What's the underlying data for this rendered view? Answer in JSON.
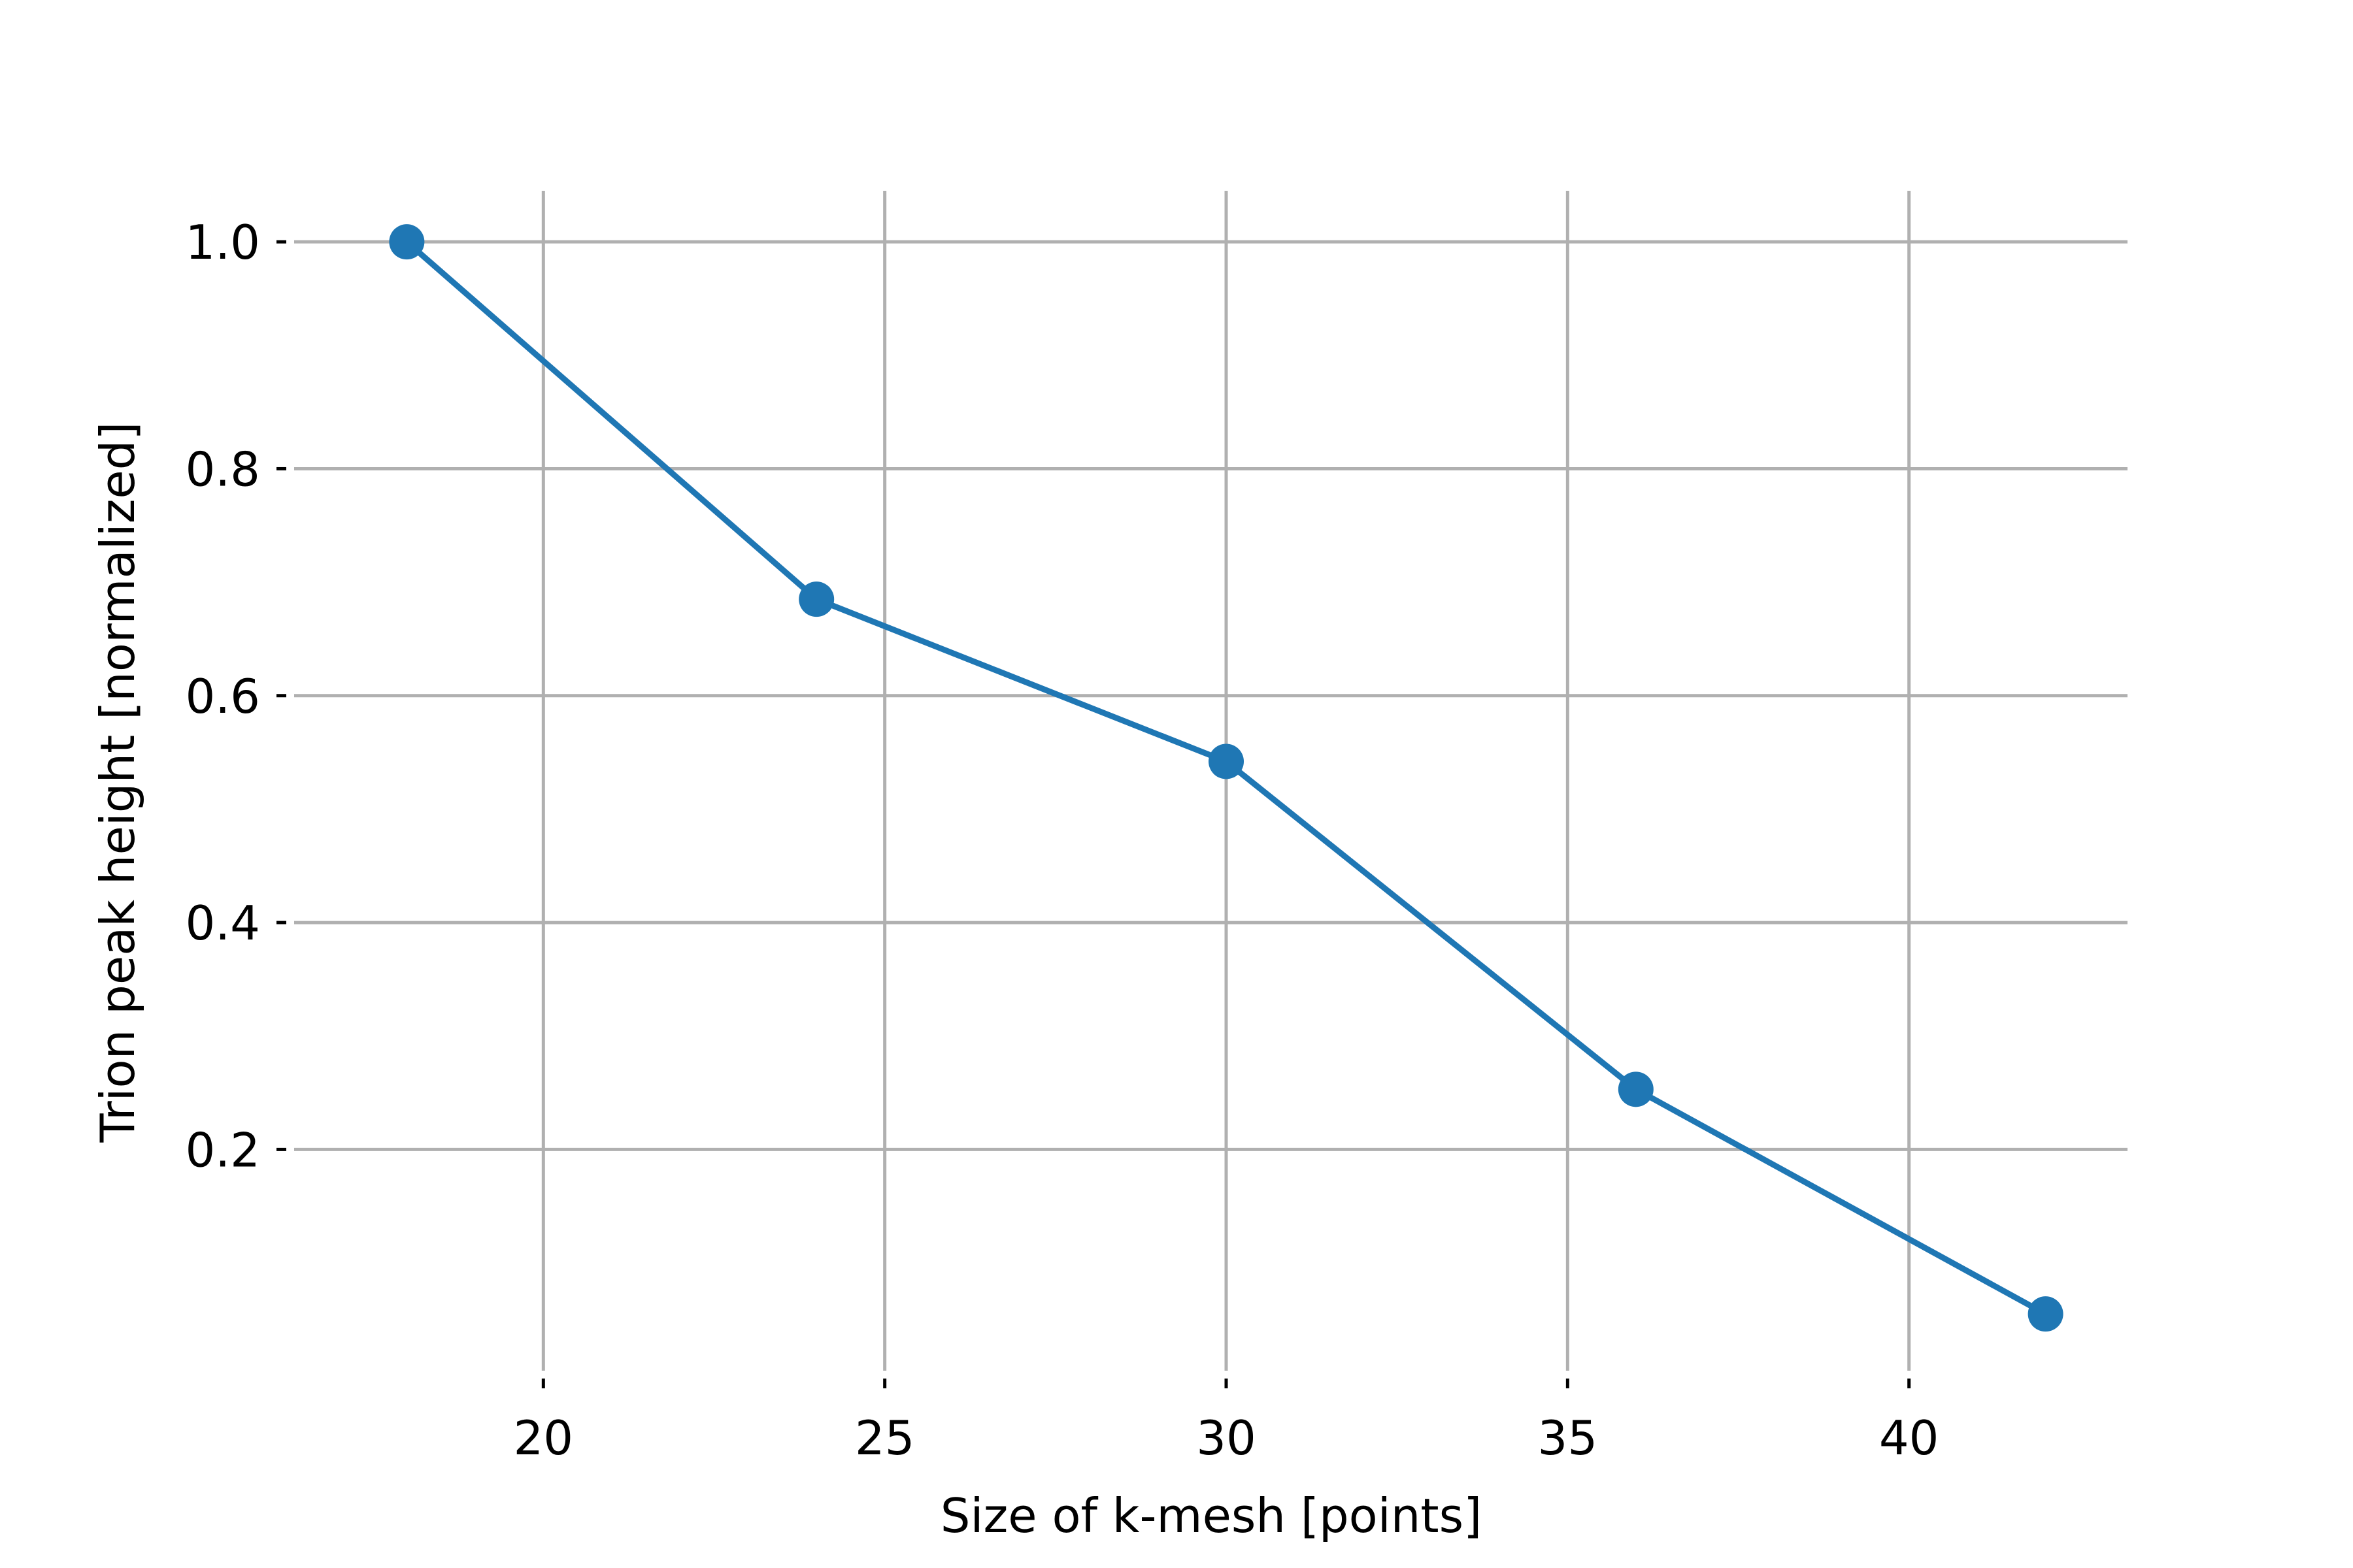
{
  "chart_data": {
    "type": "line",
    "title": "",
    "xlabel": "Size of k-mesh [points]",
    "ylabel": "Trion peak height [normalized]",
    "x": [
      18,
      24,
      30,
      36,
      42
    ],
    "series": [
      {
        "values": [
          1.0,
          0.685,
          0.542,
          0.253,
          0.055
        ]
      }
    ],
    "xlim": [
      16.35,
      43.2
    ],
    "ylim": [
      0.005,
      1.045
    ],
    "xticks": [
      20,
      25,
      30,
      35,
      40
    ],
    "xtick_labels": [
      "20",
      "25",
      "30",
      "35",
      "40"
    ],
    "yticks": [
      0.2,
      0.4,
      0.6,
      0.8,
      1.0
    ],
    "ytick_labels": [
      "0.2",
      "0.4",
      "0.6",
      "0.8",
      "1.0"
    ],
    "grid": true,
    "marker": "circle",
    "colors": {
      "series": "#1f77b4",
      "grid": "#b0b0b0",
      "text": "#000000"
    }
  }
}
